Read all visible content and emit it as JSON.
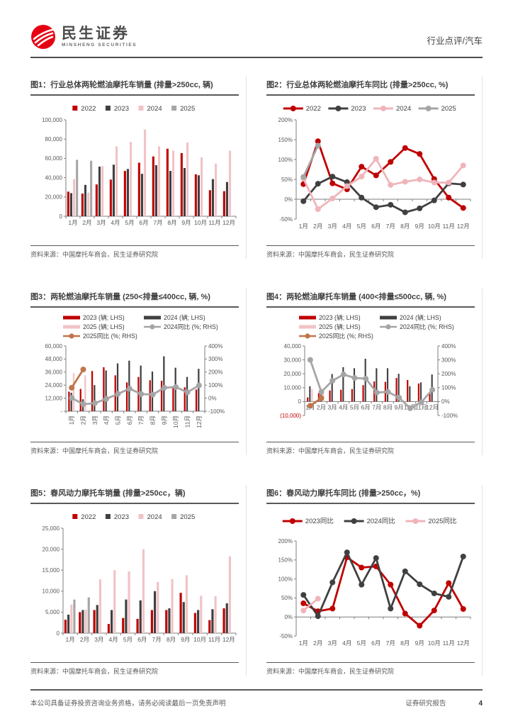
{
  "header": {
    "brand_cn": "民生证券",
    "brand_en": "MINSHENG SECURITIES",
    "section": "行业点评/汽车",
    "brand_red": "#e60012"
  },
  "footer": {
    "left": "本公司具备证券投资咨询业务资格，请务必阅读最后一页免责声明",
    "right": "证券研究报告",
    "page": "4"
  },
  "figures": [
    {
      "title": "图1：行业总体两轮燃油摩托车销量 (排量>250cc, 辆)",
      "source": "资料来源：中国摩托车商会，民生证券研究院"
    },
    {
      "title": "图2：行业总体两轮燃油摩托车同比 (排量>250cc, %)",
      "source": "资料来源：中国摩托车商会，民生证券研究院"
    },
    {
      "title": "图3：两轮燃油摩托车销量 (250<排量≤400cc, 辆, %)",
      "source": "资料来源：中国摩托车商会，民生证券研究院"
    },
    {
      "title": "图4：两轮燃油摩托车销量 (400<排量≤500cc, 辆, %)",
      "source": "资料来源：中国摩托车商会，民生证券研究院"
    },
    {
      "title": "图5：春风动力摩托车销量 (排量>250cc，辆)",
      "source": "资料来源：中国摩托车商会，民生证券研究院"
    },
    {
      "title": "图6：春风动力摩托车同比 (排量>250cc，%)",
      "source": "资料来源：中国摩托车商会，民生证券研究院"
    }
  ],
  "chart_data": [
    {
      "type": "bar",
      "title": "图1：行业总体两轮燃油摩托车销量 (排量>250cc, 辆)",
      "categories": [
        "1月",
        "2月",
        "3月",
        "4月",
        "5月",
        "6月",
        "7月",
        "8月",
        "9月",
        "10月",
        "11月",
        "12月"
      ],
      "left": {
        "min": 0,
        "max": 100000,
        "ticks": [
          {
            "v": 0,
            "label": "0"
          },
          {
            "v": 20000,
            "label": "20,000"
          },
          {
            "v": 40000,
            "label": "40,000"
          },
          {
            "v": 60000,
            "label": "60,000"
          },
          {
            "v": 80000,
            "label": "80,000"
          },
          {
            "v": 100000,
            "label": "100,000"
          }
        ]
      },
      "series": [
        {
          "name": "2022",
          "kind": "bar",
          "axis": "L",
          "color": "#c00000",
          "values": [
            25500,
            23500,
            33000,
            38000,
            47000,
            55500,
            62000,
            70000,
            65500,
            43500,
            27000,
            26000
          ]
        },
        {
          "name": "2023",
          "kind": "bar",
          "axis": "L",
          "color": "#404040",
          "values": [
            24000,
            32500,
            51500,
            53500,
            49000,
            44000,
            53000,
            47000,
            50000,
            42500,
            38500,
            35500
          ]
        },
        {
          "name": "2024",
          "kind": "bar",
          "axis": "L",
          "color": "#f1c3c6",
          "values": [
            38500,
            24500,
            52000,
            72500,
            77000,
            90000,
            72500,
            68000,
            76500,
            61000,
            54500,
            68000
          ]
        },
        {
          "name": "2025",
          "kind": "bar",
          "axis": "L",
          "color": "#a6a6a6",
          "values": [
            58500,
            57500,
            null,
            null,
            null,
            null,
            null,
            null,
            null,
            null,
            null,
            null
          ]
        }
      ]
    },
    {
      "type": "line",
      "title": "图2：行业总体两轮燃油摩托车同比 (排量>250cc, %)",
      "categories": [
        "1月",
        "2月",
        "3月",
        "4月",
        "5月",
        "6月",
        "7月",
        "8月",
        "9月",
        "10月",
        "11月",
        "12月"
      ],
      "left": {
        "min": -50,
        "max": 200,
        "ticks": [
          {
            "v": -50,
            "label": "-50%"
          },
          {
            "v": 0,
            "label": "0%"
          },
          {
            "v": 50,
            "label": "50%"
          },
          {
            "v": 100,
            "label": "100%"
          },
          {
            "v": 150,
            "label": "150%"
          },
          {
            "v": 200,
            "label": "200%"
          }
        ]
      },
      "series": [
        {
          "name": "2022",
          "kind": "line",
          "axis": "L",
          "color": "#c00000",
          "values": [
            38,
            146,
            40,
            25,
            82,
            60,
            94,
            129,
            114,
            51,
            4,
            -22
          ]
        },
        {
          "name": "2023",
          "kind": "line",
          "axis": "L",
          "color": "#404040",
          "values": [
            -5,
            39,
            57,
            43,
            4,
            -20,
            -14,
            -33,
            -23,
            -3,
            40,
            37
          ]
        },
        {
          "name": "2024",
          "kind": "line",
          "axis": "L",
          "color": "#efb5ba",
          "values": [
            52,
            -25,
            2,
            33,
            57,
            102,
            36,
            44,
            50,
            42,
            42,
            85
          ]
        },
        {
          "name": "2025",
          "kind": "line",
          "axis": "L",
          "color": "#a5a5a5",
          "values": [
            56,
            135,
            null,
            null,
            null,
            null,
            null,
            null,
            null,
            null,
            null,
            null
          ]
        }
      ]
    },
    {
      "type": "combo",
      "title": "图3：两轮燃油摩托车销量 (250<排量≤400cc, 辆, %)",
      "categories": [
        "1月",
        "2月",
        "3月",
        "4月",
        "5月",
        "6月",
        "7月",
        "8月",
        "9月",
        "10月",
        "11月",
        "12月"
      ],
      "left": {
        "min": 0,
        "max": 60000,
        "ticks": [
          {
            "v": 0,
            "label": "-"
          },
          {
            "v": 12000,
            "label": "12,000"
          },
          {
            "v": 24000,
            "label": "24,000"
          },
          {
            "v": 36000,
            "label": "36,000"
          },
          {
            "v": 48000,
            "label": "48,000"
          },
          {
            "v": 60000,
            "label": "60,000"
          }
        ]
      },
      "right": {
        "min": -100,
        "max": 400,
        "ticks": [
          {
            "v": -100,
            "label": "-100%"
          },
          {
            "v": 0,
            "label": "0%"
          },
          {
            "v": 100,
            "label": "100%"
          },
          {
            "v": 200,
            "label": "200%"
          },
          {
            "v": 300,
            "label": "300%"
          },
          {
            "v": 400,
            "label": "400%"
          }
        ]
      },
      "series": [
        {
          "name": "2023 (辆; LHS)",
          "kind": "bar",
          "axis": "L",
          "color": "#c00000",
          "values": [
            18000,
            20500,
            37000,
            40500,
            33000,
            26500,
            31500,
            28500,
            28000,
            21500,
            22000,
            20000
          ]
        },
        {
          "name": "2024 (辆; LHS)",
          "kind": "bar",
          "axis": "L",
          "color": "#404040",
          "values": [
            17000,
            11000,
            24000,
            37500,
            44000,
            46500,
            42000,
            36500,
            50500,
            40000,
            31500,
            39000
          ]
        },
        {
          "name": "2025 (辆; LHS)",
          "kind": "bar",
          "axis": "L",
          "color": "#f1c3c6",
          "values": [
            35000,
            33000,
            null,
            null,
            null,
            null,
            null,
            null,
            null,
            null,
            null,
            null
          ]
        },
        {
          "name": "2024同比 (%; RHS)",
          "kind": "line",
          "axis": "R",
          "color": "#a5a5a5",
          "values": [
            2,
            -47,
            -38,
            -5,
            33,
            73,
            32,
            27,
            80,
            85,
            45,
            98
          ]
        },
        {
          "name": "2025同比 (%; RHS)",
          "kind": "line",
          "axis": "R",
          "color": "#c0764a",
          "values": [
            80,
            220,
            null,
            null,
            null,
            null,
            null,
            null,
            null,
            null,
            null,
            null
          ]
        }
      ]
    },
    {
      "type": "combo",
      "title": "图4：两轮燃油摩托车销量 (400<排量≤500cc, 辆, %)",
      "categories": [
        "1月",
        "2月",
        "3月",
        "4月",
        "5月",
        "6月",
        "7月",
        "8月",
        "9月",
        "10月",
        "11月",
        "12月"
      ],
      "left": {
        "min": -10000,
        "max": 40000,
        "ticks": [
          {
            "v": -10000,
            "label": "(10,000)",
            "red": true
          },
          {
            "v": 0,
            "label": "0"
          },
          {
            "v": 10000,
            "label": "10,000"
          },
          {
            "v": 20000,
            "label": "20,000"
          },
          {
            "v": 30000,
            "label": "30,000"
          },
          {
            "v": 40000,
            "label": "40,000"
          }
        ]
      },
      "right": {
        "min": -100,
        "max": 400,
        "ticks": [
          {
            "v": -100,
            "label": "-100%"
          },
          {
            "v": 0,
            "label": "0%"
          },
          {
            "v": 100,
            "label": "100%"
          },
          {
            "v": 200,
            "label": "200%"
          },
          {
            "v": 300,
            "label": "300%"
          },
          {
            "v": 400,
            "label": "400%"
          }
        ]
      },
      "series": [
        {
          "name": "2023 (辆; LHS)",
          "kind": "bar",
          "axis": "L",
          "color": "#c00000",
          "values": [
            3000,
            6000,
            8000,
            8500,
            9000,
            11800,
            14500,
            14200,
            17000,
            15500,
            13000,
            6500
          ]
        },
        {
          "name": "2024 (辆; LHS)",
          "kind": "bar",
          "axis": "L",
          "color": "#404040",
          "values": [
            11000,
            7500,
            19800,
            24800,
            24000,
            30800,
            24000,
            24000,
            20000,
            11000,
            13800,
            19500
          ]
        },
        {
          "name": "2025 (辆; LHS)",
          "kind": "bar",
          "axis": "L",
          "color": "#f1c3c6",
          "values": [
            9000,
            7500,
            null,
            null,
            null,
            null,
            null,
            null,
            null,
            null,
            null,
            null
          ]
        },
        {
          "name": "2024同比 (%; RHS)",
          "kind": "line",
          "axis": "R",
          "color": "#a5a5a5",
          "values": [
            300,
            70,
            150,
            195,
            170,
            165,
            65,
            70,
            28,
            -48,
            -5,
            85
          ]
        },
        {
          "name": "2025同比 (%; RHS)",
          "kind": "line",
          "axis": "R",
          "color": "#c0764a",
          "values": [
            -30,
            25,
            null,
            null,
            null,
            null,
            null,
            null,
            null,
            null,
            null,
            null
          ]
        }
      ]
    },
    {
      "type": "bar",
      "title": "图5：春风动力摩托车销量 (排量>250cc，辆)",
      "categories": [
        "1月",
        "2月",
        "3月",
        "4月",
        "5月",
        "6月",
        "7月",
        "8月",
        "9月",
        "10月",
        "11月",
        "12月"
      ],
      "left": {
        "min": 0,
        "max": 25000,
        "ticks": [
          {
            "v": 0,
            "label": "0"
          },
          {
            "v": 5000,
            "label": "5,000"
          },
          {
            "v": 10000,
            "label": "10,000"
          },
          {
            "v": 15000,
            "label": "15,000"
          },
          {
            "v": 20000,
            "label": "20,000"
          },
          {
            "v": 25000,
            "label": "25,000"
          }
        ]
      },
      "series": [
        {
          "name": "2022",
          "kind": "bar",
          "axis": "L",
          "color": "#c00000",
          "values": [
            3200,
            5000,
            5500,
            2200,
            3600,
            3400,
            5500,
            5500,
            9600,
            4800,
            3100,
            5900
          ]
        },
        {
          "name": "2023",
          "kind": "bar",
          "axis": "L",
          "color": "#404040",
          "values": [
            4400,
            5500,
            6700,
            5500,
            8000,
            7800,
            10000,
            5900,
            7400,
            5500,
            5700,
            7100
          ]
        },
        {
          "name": "2024",
          "kind": "bar",
          "axis": "L",
          "color": "#f1c3c6",
          "values": [
            6800,
            5600,
            12800,
            15000,
            14700,
            20000,
            12200,
            12900,
            13800,
            8900,
            8800,
            18300
          ]
        },
        {
          "name": "2025",
          "kind": "bar",
          "axis": "L",
          "color": "#a6a6a6",
          "values": [
            8000,
            8500,
            null,
            null,
            null,
            null,
            null,
            null,
            null,
            null,
            null,
            null
          ]
        }
      ]
    },
    {
      "type": "line",
      "title": "图6：春风动力摩托车同比 (排量>250cc，%)",
      "categories": [
        "1月",
        "2月",
        "3月",
        "4月",
        "5月",
        "6月",
        "7月",
        "8月",
        "9月",
        "10月",
        "11月",
        "12月"
      ],
      "left": {
        "min": -50,
        "max": 200,
        "ticks": [
          {
            "v": -50,
            "label": "-50%"
          },
          {
            "v": 0,
            "label": "0%"
          },
          {
            "v": 50,
            "label": "50%"
          },
          {
            "v": 100,
            "label": "100%"
          },
          {
            "v": 150,
            "label": "150%"
          },
          {
            "v": 200,
            "label": "200%"
          }
        ]
      },
      "series": [
        {
          "name": "2023同比",
          "kind": "line",
          "axis": "L",
          "color": "#c00000",
          "values": [
            36,
            15,
            22,
            157,
            130,
            133,
            85,
            9,
            -23,
            17,
            89,
            21
          ]
        },
        {
          "name": "2024同比",
          "kind": "line",
          "axis": "L",
          "color": "#404040",
          "values": [
            58,
            2,
            91,
            170,
            85,
            155,
            22,
            120,
            86,
            62,
            53,
            159
          ]
        },
        {
          "name": "2025同比",
          "kind": "line",
          "axis": "L",
          "color": "#efb5ba",
          "values": [
            17,
            48,
            null,
            null,
            null,
            null,
            null,
            null,
            null,
            null,
            null,
            null
          ]
        }
      ]
    }
  ]
}
